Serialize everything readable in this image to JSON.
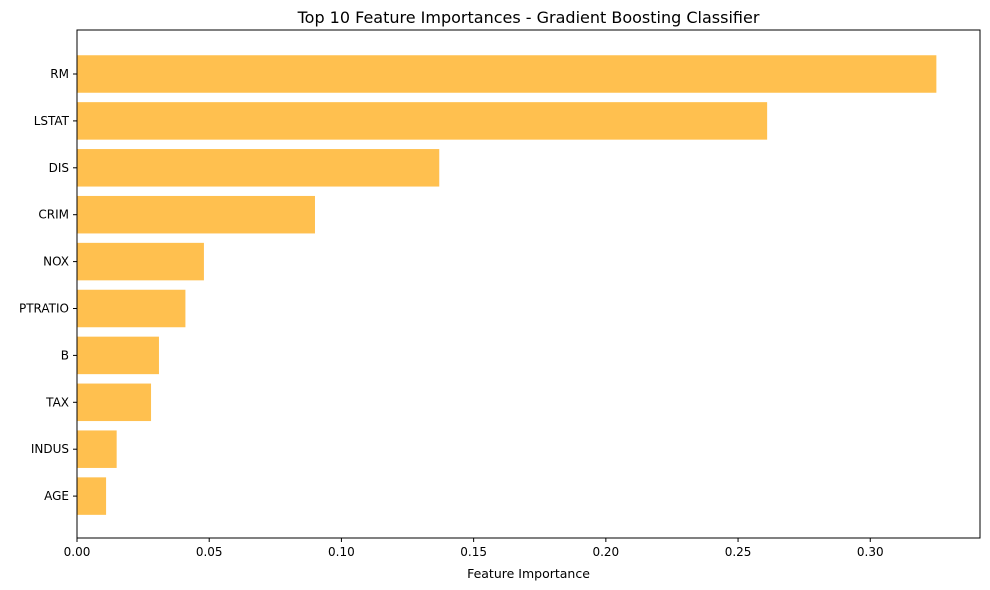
{
  "chart_data": {
    "type": "bar",
    "orientation": "horizontal",
    "title": "Top 10 Feature Importances - Gradient Boosting Classifier",
    "xlabel": "Feature Importance",
    "ylabel": "",
    "categories": [
      "RM",
      "LSTAT",
      "DIS",
      "CRIM",
      "NOX",
      "PTRATIO",
      "B",
      "TAX",
      "INDUS",
      "AGE"
    ],
    "values": [
      0.325,
      0.261,
      0.137,
      0.09,
      0.048,
      0.041,
      0.031,
      0.028,
      0.015,
      0.011
    ],
    "xlim": [
      0,
      0.3415
    ],
    "xticks": [
      "0.00",
      "0.05",
      "0.10",
      "0.15",
      "0.20",
      "0.25",
      "0.30"
    ],
    "grid": false,
    "bar_color": "#ffc04f"
  }
}
